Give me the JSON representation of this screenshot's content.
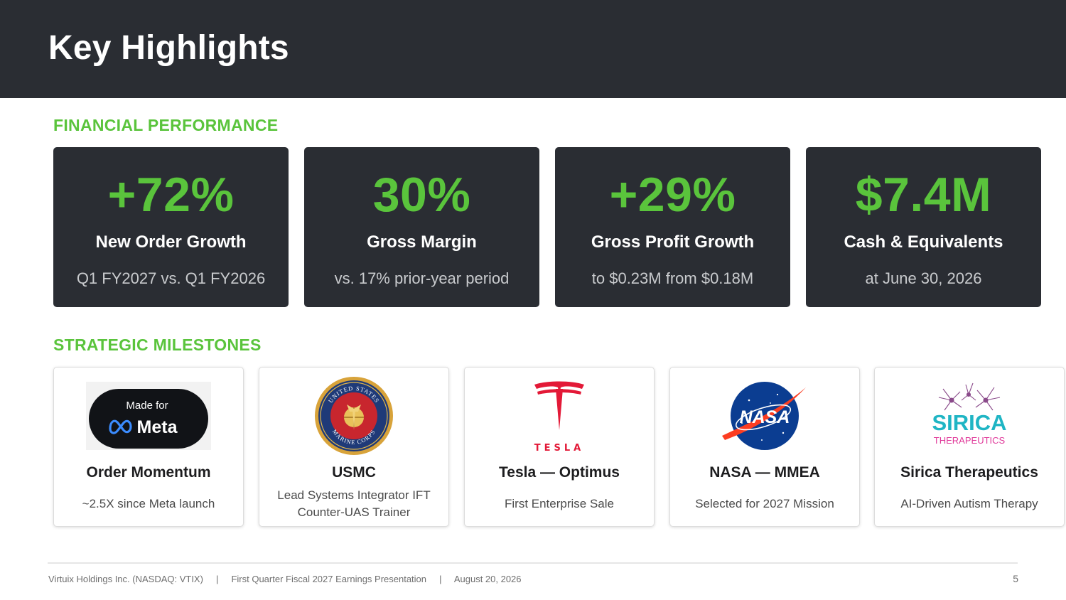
{
  "header": {
    "title": "Key Highlights"
  },
  "financial": {
    "label": "FINANCIAL PERFORMANCE",
    "metrics": [
      {
        "value": "+72%",
        "title": "New Order Growth",
        "sub": "Q1 FY2027 vs. Q1 FY2026"
      },
      {
        "value": "30%",
        "title": "Gross Margin",
        "sub": "vs. 17% prior-year period"
      },
      {
        "value": "+29%",
        "title": "Gross Profit Growth",
        "sub": "to $0.23M from $0.18M"
      },
      {
        "value": "$7.4M",
        "title": "Cash & Equivalents",
        "sub": "at June 30, 2026"
      }
    ]
  },
  "milestones": {
    "label": "STRATEGIC MILESTONES",
    "items": [
      {
        "logo_line1": "Made for",
        "logo_line2": "Meta",
        "logo_icon": "meta-infinity-logo",
        "title": "Order Momentum",
        "desc": "~2.5X since Meta launch"
      },
      {
        "logo_top_text": "UNITED STATES",
        "logo_bottom_text": "MARINE CORPS",
        "logo_icon": "usmc-emblem",
        "title": "USMC",
        "desc_line1": "Lead Systems Integrator IFT",
        "desc_line2": "Counter-UAS Trainer"
      },
      {
        "logo_text": "TESLA",
        "logo_icon": "tesla-t-logo",
        "title": "Tesla — Optimus",
        "desc": "First Enterprise Sale"
      },
      {
        "logo_text": "NASA",
        "logo_icon": "nasa-meatball-logo",
        "title": "NASA — MMEA",
        "desc": "Selected for 2027 Mission"
      },
      {
        "logo_line1": "SIRICA",
        "logo_line2": "THERAPEUTICS",
        "logo_icon": "neuron-icon",
        "title": "Sirica Therapeutics",
        "desc": "AI-Driven Autism Therapy"
      }
    ]
  },
  "footer": {
    "company": "Virtuix Holdings Inc. (NASDAQ: VTIX)",
    "separator": "|",
    "presentation": "First Quarter Fiscal 2027 Earnings Presentation",
    "date": "August 20, 2026",
    "page": "5"
  },
  "colors": {
    "accent": "#5ac43c",
    "dark": "#2a2d33",
    "tesla_red": "#e31937",
    "nasa_blue": "#0b3d91",
    "sirica_teal": "#1fb5c4",
    "sirica_pink": "#e0399a"
  }
}
